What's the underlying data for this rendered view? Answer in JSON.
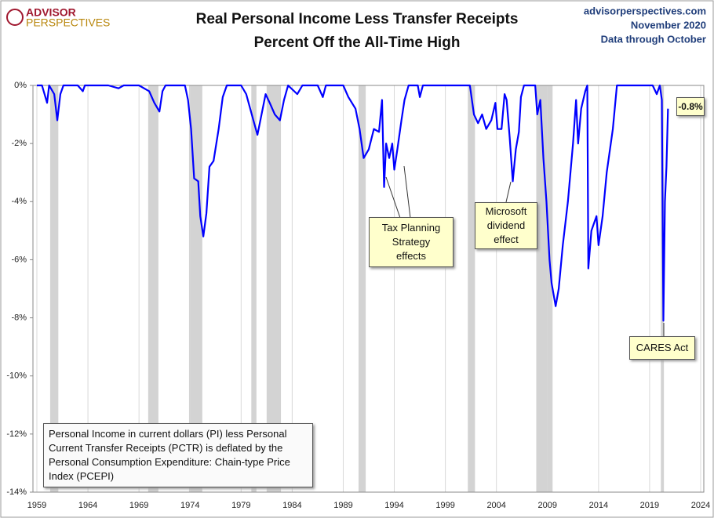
{
  "logo": {
    "line1": "ADVISOR",
    "line2": "PERSPECTIVES"
  },
  "source": {
    "site": "advisorperspectives.com",
    "date": "November 2020",
    "note": "Data through October"
  },
  "chart_data": {
    "type": "line",
    "title": [
      "Real Personal Income Less Transfer Receipts",
      "Percent Off the All-Time High"
    ],
    "xlim": [
      1959,
      2024
    ],
    "xticks": [
      1959,
      1964,
      1969,
      1974,
      1979,
      1984,
      1989,
      1994,
      1999,
      2004,
      2009,
      2014,
      2019,
      2024
    ],
    "ylim": [
      -14,
      0
    ],
    "yticks": [
      {
        "value": 0,
        "label": "0%"
      },
      {
        "value": -2,
        "label": "-2%"
      },
      {
        "value": -4,
        "label": "-4%"
      },
      {
        "value": -6,
        "label": "-6%"
      },
      {
        "value": -8,
        "label": "-8%"
      },
      {
        "value": -10,
        "label": "-10%"
      },
      {
        "value": -12,
        "label": "-12%"
      },
      {
        "value": -14,
        "label": "-14%"
      }
    ],
    "grid": true,
    "recessions": [
      [
        1960.3,
        1961.1
      ],
      [
        1969.9,
        1970.9
      ],
      [
        1973.9,
        1975.2
      ],
      [
        1980.0,
        1980.5
      ],
      [
        1981.5,
        1982.9
      ],
      [
        1990.5,
        1991.2
      ],
      [
        2001.2,
        2001.9
      ],
      [
        2007.9,
        2009.5
      ],
      [
        2020.1,
        2020.4
      ]
    ],
    "recession_color": "#d3d3d3",
    "x": [
      1959.0,
      1959.5,
      1960.0,
      1960.2,
      1960.7,
      1961.0,
      1961.3,
      1961.6,
      1963.0,
      1963.5,
      1963.7,
      1966.0,
      1967.0,
      1967.5,
      1969.0,
      1970.0,
      1970.5,
      1971.0,
      1971.3,
      1971.6,
      1973.5,
      1973.8,
      1974.1,
      1974.4,
      1974.8,
      1975.0,
      1975.3,
      1975.6,
      1975.9,
      1976.3,
      1976.8,
      1977.2,
      1977.6,
      1979.0,
      1979.5,
      1980.2,
      1980.6,
      1981.0,
      1981.4,
      1981.8,
      1982.3,
      1982.8,
      1983.2,
      1983.6,
      1984.5,
      1985.0,
      1986.5,
      1987.0,
      1987.3,
      1989.0,
      1989.5,
      1990.2,
      1990.6,
      1991.0,
      1991.5,
      1992.0,
      1992.5,
      1992.8,
      1993.0,
      1993.2,
      1993.5,
      1993.8,
      1994.0,
      1994.3,
      1994.7,
      1995.0,
      1995.4,
      1996.3,
      1996.5,
      1996.8,
      2001.4,
      2001.8,
      2002.2,
      2002.6,
      2003.0,
      2003.5,
      2003.9,
      2004.1,
      2004.5,
      2004.8,
      2005.0,
      2005.3,
      2005.6,
      2005.9,
      2006.2,
      2006.4,
      2006.7,
      2007.8,
      2008.0,
      2008.3,
      2008.6,
      2008.9,
      2009.2,
      2009.4,
      2009.8,
      2010.1,
      2010.5,
      2011.0,
      2011.5,
      2011.8,
      2012.0,
      2012.3,
      2012.7,
      2012.9,
      2013.0,
      2013.3,
      2013.8,
      2014.0,
      2014.4,
      2014.8,
      2015.4,
      2015.8,
      2019.3,
      2019.7,
      2020.0,
      2020.2,
      2020.35,
      2020.5,
      2020.65,
      2020.8
    ],
    "series": [
      {
        "name": "Real Personal Income Less Transfer Receipts",
        "color": "#0000ff",
        "values": [
          0,
          0,
          -0.6,
          0,
          -0.3,
          -1.2,
          -0.3,
          0,
          0,
          -0.2,
          0,
          0,
          -0.1,
          0,
          0,
          -0.2,
          -0.6,
          -0.9,
          -0.2,
          0,
          0,
          -0.5,
          -1.5,
          -3.2,
          -3.3,
          -4.5,
          -5.2,
          -4.4,
          -2.8,
          -2.6,
          -1.5,
          -0.4,
          0,
          0,
          -0.3,
          -1.2,
          -1.7,
          -1.0,
          -0.3,
          -0.6,
          -1.0,
          -1.2,
          -0.5,
          0,
          -0.3,
          0,
          0,
          -0.4,
          0,
          0,
          -0.4,
          -0.8,
          -1.5,
          -2.5,
          -2.2,
          -1.5,
          -1.6,
          -0.5,
          -3.5,
          -2.0,
          -2.5,
          -2.0,
          -2.9,
          -2.2,
          -1.2,
          -0.5,
          0,
          0,
          -0.4,
          0,
          0,
          -1.0,
          -1.3,
          -1.0,
          -1.5,
          -1.2,
          -0.6,
          -1.5,
          -1.5,
          -0.3,
          -0.5,
          -1.8,
          -3.3,
          -2.2,
          -1.6,
          -0.4,
          0,
          0,
          -1.0,
          -0.5,
          -2.5,
          -4.0,
          -6.0,
          -6.8,
          -7.6,
          -7.0,
          -5.5,
          -4.0,
          -2.0,
          -0.5,
          -2.0,
          -0.8,
          -0.2,
          0,
          -6.3,
          -5.0,
          -4.5,
          -5.5,
          -4.5,
          -3.0,
          -1.5,
          0,
          0,
          -0.3,
          0,
          -0.5,
          -8.1,
          -4.0,
          -2.8,
          -0.8
        ]
      }
    ],
    "last_value_label": "-0.8%",
    "annotations": {
      "tax": [
        "Tax Planning",
        "Strategy",
        "effects"
      ],
      "microsoft": [
        "Microsoft",
        "dividend",
        "effect"
      ],
      "cares": [
        "CARES Act"
      ]
    },
    "note": "Personal Income in current dollars  (PI) less Personal Current Transfer Receipts (PCTR) is deflated by the Personal Consumption Expenditure: Chain-type Price Index (PCEPI)"
  }
}
